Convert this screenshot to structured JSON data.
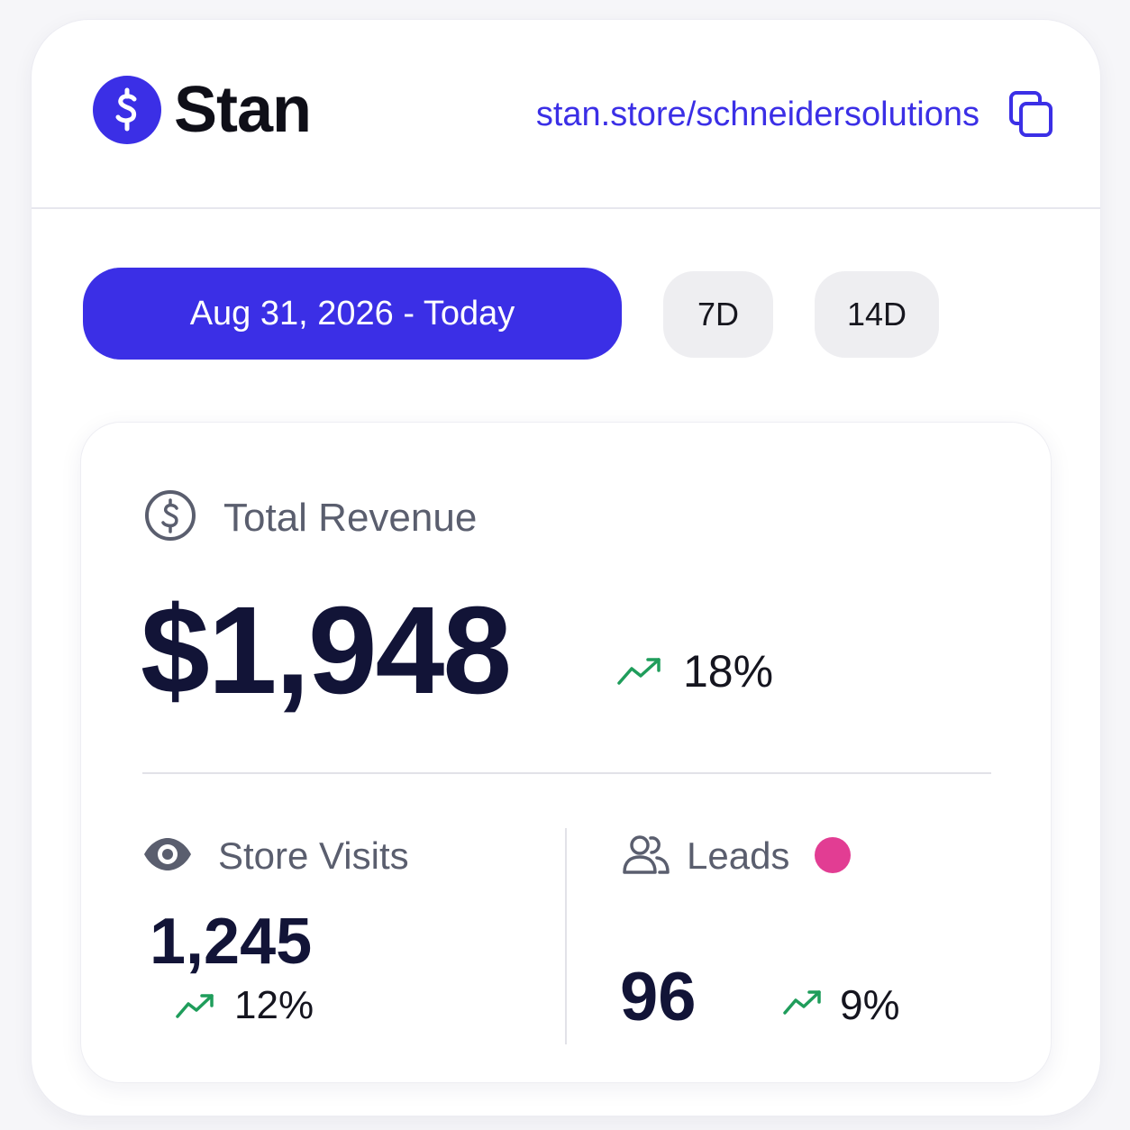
{
  "brand": {
    "name": "Stan",
    "logo_icon": "dollar-icon"
  },
  "header": {
    "store_url": "stan.store/schneidersolutions",
    "copy_icon": "copy-icon"
  },
  "date_range": {
    "active_label": "Aug 31, 2026 - Today",
    "options": [
      "7D",
      "14D"
    ]
  },
  "stats": {
    "revenue": {
      "label": "Total Revenue",
      "icon": "dollar-circle-icon",
      "value": "$1,948",
      "change": "18%",
      "trend_icon": "trend-up-icon"
    },
    "visits": {
      "label": "Store Visits",
      "icon": "eye-icon",
      "value": "1,245",
      "change": "12%",
      "trend_icon": "trend-up-icon"
    },
    "leads": {
      "label": "Leads",
      "icon": "users-icon",
      "value": "96",
      "change": "9%",
      "trend_icon": "trend-up-icon",
      "status_color": "#e23d93"
    }
  },
  "colors": {
    "accent": "#3b2fe6",
    "trend_up": "#1f9d5b",
    "value_text": "#121437"
  }
}
